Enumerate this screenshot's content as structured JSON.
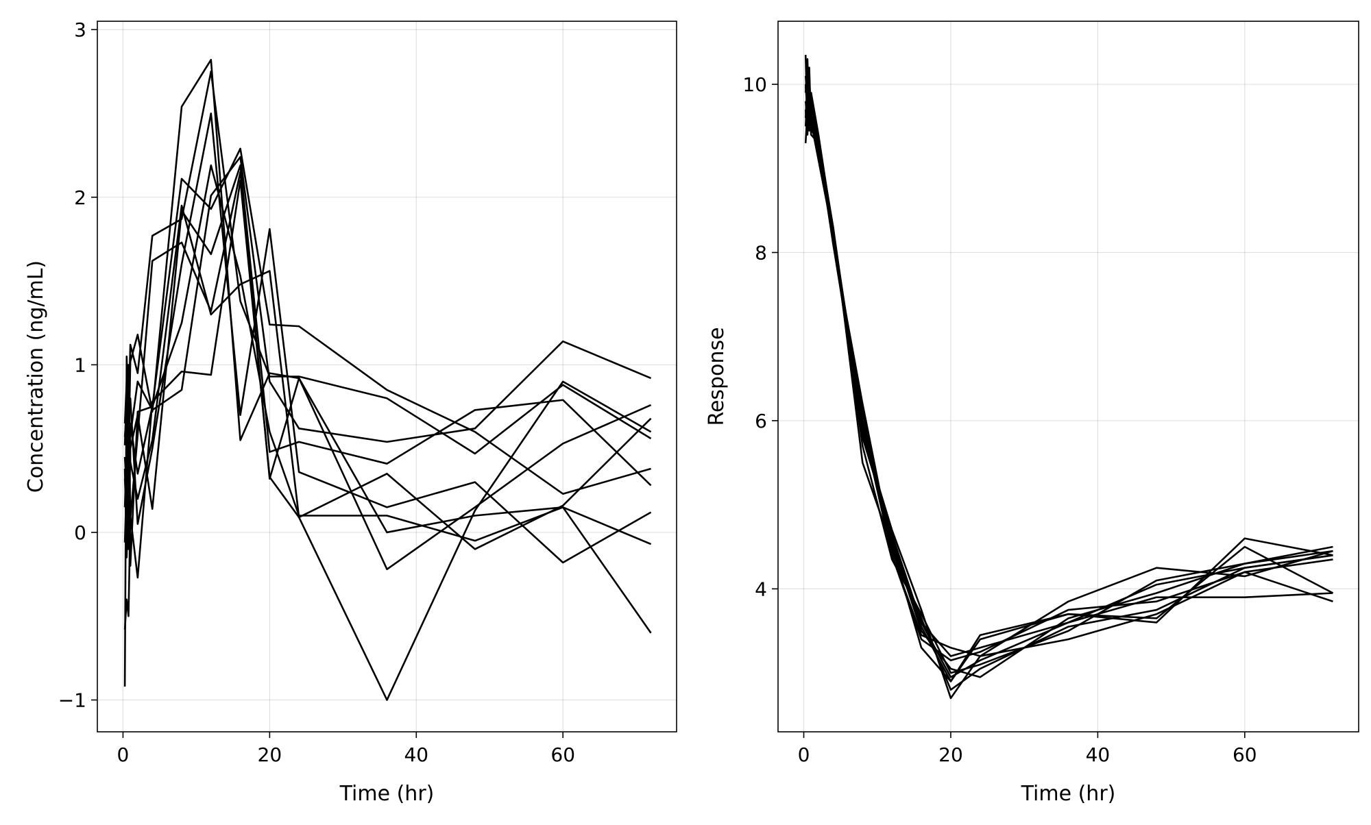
{
  "chart_data": [
    {
      "type": "line",
      "xlabel": "Time (hr)",
      "ylabel": "Concentration (ng/mL)",
      "xlim": [
        -3.5,
        75.5
      ],
      "ylim": [
        -1.19,
        3.05
      ],
      "xticks": [
        0,
        20,
        40,
        60
      ],
      "yticks": [
        -1,
        0,
        1,
        2,
        3
      ],
      "xtick_labels": [
        "0",
        "20",
        "40",
        "60"
      ],
      "ytick_labels": [
        "−1",
        "0",
        "1",
        "2",
        "3"
      ],
      "grid": true,
      "legend": "none",
      "x": [
        0.25,
        0.5,
        0.75,
        1,
        2,
        4,
        8,
        12,
        16,
        20,
        24,
        36,
        48,
        60,
        72
      ],
      "series": [
        {
          "values": [
            -0.92,
            1.05,
            0.7,
            1.12,
            0.95,
            1.77,
            1.87,
            2.75,
            1.38,
            0.93,
            0.93,
            0.8,
            0.47,
            0.88,
            0.56
          ]
        },
        {
          "values": [
            0.65,
            0.9,
            0.45,
            1.02,
            1.18,
            0.72,
            2.54,
            2.82,
            0.55,
            0.95,
            0.92,
            -0.22,
            0.15,
            0.53,
            0.76
          ]
        },
        {
          "values": [
            -0.06,
            0.3,
            0.55,
            -0.2,
            0.72,
            0.75,
            2.11,
            1.93,
            2.29,
            1.24,
            1.23,
            0.85,
            0.6,
            0.23,
            0.38
          ]
        },
        {
          "values": [
            0.57,
            0.72,
            1.0,
            0.42,
            0.2,
            0.55,
            1.95,
            1.3,
            1.48,
            1.56,
            0.09,
            -1.0,
            0.13,
            0.9,
            0.6
          ]
        },
        {
          "values": [
            0.15,
            0.5,
            0.95,
            0.08,
            0.58,
            1.62,
            1.73,
            1.32,
            2.15,
            0.32,
            0.92,
            0.0,
            0.1,
            0.15,
            -0.07
          ]
        },
        {
          "values": [
            0.32,
            0.12,
            0.65,
            0.8,
            0.05,
            0.5,
            1.6,
            2.5,
            0.7,
            1.81,
            0.36,
            0.15,
            0.3,
            -0.18,
            0.12
          ]
        },
        {
          "values": [
            0.45,
            0.25,
            -0.1,
            0.5,
            0.7,
            0.14,
            1.92,
            1.66,
            2.19,
            0.48,
            0.54,
            0.41,
            0.73,
            0.79,
            0.28
          ]
        },
        {
          "values": [
            -0.58,
            -0.4,
            -0.5,
            0.1,
            -0.27,
            0.78,
            0.96,
            0.94,
            2.1,
            0.33,
            0.09,
            0.35,
            -0.1,
            0.16,
            0.68
          ]
        },
        {
          "values": [
            0.52,
            0.85,
            0.3,
            0.58,
            0.9,
            0.73,
            0.85,
            2.01,
            2.24,
            0.9,
            0.62,
            0.54,
            0.62,
            1.14,
            0.92
          ]
        },
        {
          "values": [
            0.38,
            -0.15,
            0.2,
            0.65,
            0.35,
            0.75,
            1.25,
            2.19,
            1.53,
            0.6,
            0.1,
            0.1,
            -0.05,
            0.15,
            -0.6
          ]
        }
      ]
    },
    {
      "type": "line",
      "xlabel": "Time (hr)",
      "ylabel": "Response",
      "xlim": [
        -3.5,
        75.5
      ],
      "ylim": [
        2.3,
        10.75
      ],
      "xticks": [
        0,
        20,
        40,
        60
      ],
      "yticks": [
        4,
        6,
        8,
        10
      ],
      "xtick_labels": [
        "0",
        "20",
        "40",
        "60"
      ],
      "ytick_labels": [
        "4",
        "6",
        "8",
        "10"
      ],
      "grid": true,
      "legend": "none",
      "x": [
        0.25,
        0.5,
        0.75,
        1,
        2,
        4,
        8,
        12,
        16,
        20,
        24,
        36,
        48,
        60,
        72
      ],
      "series": [
        {
          "values": [
            10.35,
            9.5,
            10.2,
            9.45,
            9.35,
            8.3,
            5.5,
            4.5,
            3.3,
            2.9,
            3.45,
            3.7,
            3.65,
            4.5,
            3.95
          ]
        },
        {
          "values": [
            9.9,
            10.3,
            9.6,
            9.9,
            9.4,
            8.25,
            6.0,
            4.4,
            3.45,
            3.3,
            3.2,
            3.85,
            4.25,
            4.15,
            4.45
          ]
        },
        {
          "values": [
            9.3,
            9.7,
            10.0,
            9.8,
            9.3,
            8.2,
            5.9,
            4.6,
            3.55,
            2.9,
            3.4,
            3.7,
            3.6,
            4.6,
            4.4
          ]
        },
        {
          "values": [
            9.6,
            10.05,
            9.6,
            9.5,
            9.25,
            8.1,
            6.2,
            4.45,
            3.6,
            3.2,
            3.3,
            3.6,
            3.9,
            3.9,
            3.95
          ]
        },
        {
          "values": [
            10.1,
            9.8,
            9.5,
            9.7,
            9.15,
            8.2,
            5.7,
            4.35,
            3.7,
            3.0,
            3.1,
            3.5,
            4.1,
            4.3,
            4.5
          ]
        },
        {
          "values": [
            9.7,
            9.4,
            9.9,
            9.6,
            9.2,
            8.15,
            6.1,
            4.5,
            3.65,
            2.8,
            3.05,
            3.55,
            3.75,
            4.25,
            4.4
          ]
        },
        {
          "values": [
            9.8,
            9.55,
            9.7,
            9.4,
            9.3,
            8.3,
            5.85,
            4.7,
            3.75,
            2.7,
            3.2,
            3.4,
            3.7,
            4.2,
            4.35
          ]
        },
        {
          "values": [
            9.95,
            10.1,
            9.45,
            9.55,
            9.1,
            8.2,
            6.0,
            4.55,
            3.5,
            3.05,
            2.95,
            3.65,
            3.95,
            4.3,
            4.45
          ]
        },
        {
          "values": [
            9.5,
            9.9,
            9.8,
            9.65,
            9.35,
            8.1,
            5.95,
            4.4,
            3.4,
            3.15,
            3.25,
            3.75,
            3.85,
            4.2,
            3.85
          ]
        },
        {
          "values": [
            10.0,
            9.65,
            9.55,
            9.75,
            9.2,
            8.25,
            5.8,
            4.65,
            3.6,
            2.95,
            3.15,
            3.6,
            4.05,
            4.25,
            4.4
          ]
        }
      ]
    }
  ]
}
